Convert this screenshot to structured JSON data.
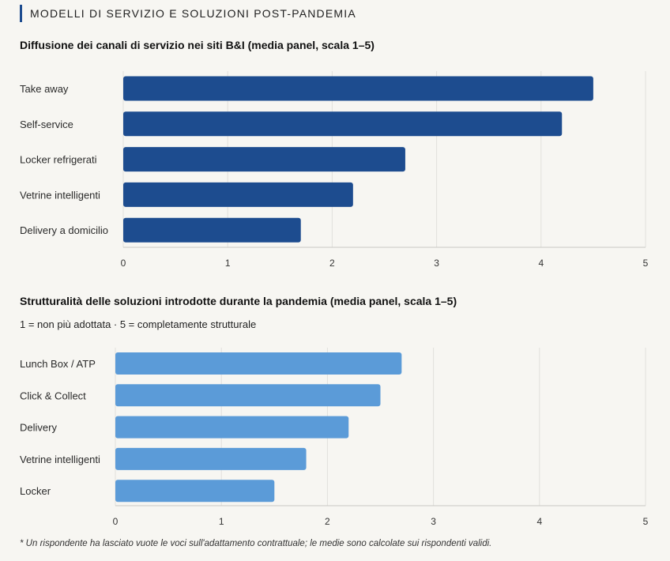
{
  "header": {
    "title": "MODELLI DI SERVIZIO E SOLUZIONI POST-PANDEMIA"
  },
  "chart_data": [
    {
      "type": "bar",
      "orientation": "horizontal",
      "title": "Diffusione dei canali di servizio nei siti B&I (media panel, scala 1–5)",
      "categories": [
        "Take away",
        "Self-service",
        "Locker refrigerati",
        "Vetrine intelligenti",
        "Delivery a domicilio"
      ],
      "values": [
        4.5,
        4.2,
        2.7,
        2.2,
        1.7
      ],
      "xlim": [
        0,
        5
      ],
      "ticks": [
        "0",
        "1",
        "2",
        "3",
        "4",
        "5"
      ],
      "grid": true,
      "color": "#1d4c8f"
    },
    {
      "type": "bar",
      "orientation": "horizontal",
      "title": "Strutturalità delle soluzioni introdotte durante la pandemia (media panel, scala 1–5)",
      "subtitle": "1 = non più adottata · 5 = completamente strutturale",
      "categories": [
        "Lunch Box / ATP",
        "Click & Collect",
        "Delivery",
        "Vetrine intelligenti",
        "Locker"
      ],
      "values": [
        2.7,
        2.5,
        2.2,
        1.8,
        1.5
      ],
      "xlim": [
        0,
        5
      ],
      "ticks": [
        "0",
        "1",
        "2",
        "3",
        "4",
        "5"
      ],
      "grid": true,
      "color": "#5b9bd8"
    }
  ],
  "footnote": "* Un rispondente ha lasciato vuote le voci sull'adattamento contrattuale; le medie sono calcolate sui rispondenti validi."
}
